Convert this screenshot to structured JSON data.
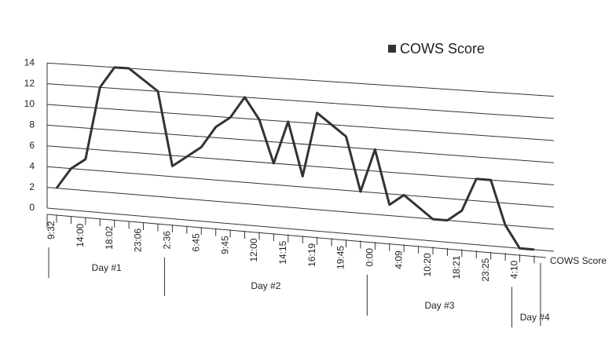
{
  "chart_data": {
    "type": "line",
    "categories": [
      "9:32",
      null,
      "14:00",
      null,
      "18:02",
      null,
      "23:06",
      null,
      "2:36",
      null,
      "6:45",
      null,
      "9:45",
      null,
      "12:00",
      null,
      "14:15",
      null,
      "16:19",
      null,
      "19:45",
      null,
      "0:00",
      null,
      "4:09",
      null,
      "10:20",
      null,
      "18:21",
      null,
      "23:25",
      null,
      "4:10",
      null
    ],
    "groups": [
      {
        "label": "Day #1",
        "start": 0,
        "end": 8
      },
      {
        "label": "Day #2",
        "start": 8,
        "end": 22
      },
      {
        "label": "Day #3",
        "start": 22,
        "end": 32
      },
      {
        "label": "Day #4",
        "start": 32,
        "end": 34
      }
    ],
    "series": [
      {
        "name": "COWS Score",
        "color": "#333333",
        "values": [
          2,
          4,
          5,
          12,
          14,
          14,
          13,
          12,
          5,
          6,
          7,
          9,
          10,
          12,
          10,
          6,
          10,
          5,
          11,
          10,
          9,
          4,
          8,
          3,
          4,
          3,
          2,
          2,
          3,
          6,
          6,
          2,
          0,
          0
        ]
      }
    ],
    "ylim": [
      0,
      14
    ],
    "yticks": [
      0,
      2,
      4,
      6,
      8,
      10,
      12,
      14
    ],
    "grid": true,
    "legend": "top-right"
  }
}
